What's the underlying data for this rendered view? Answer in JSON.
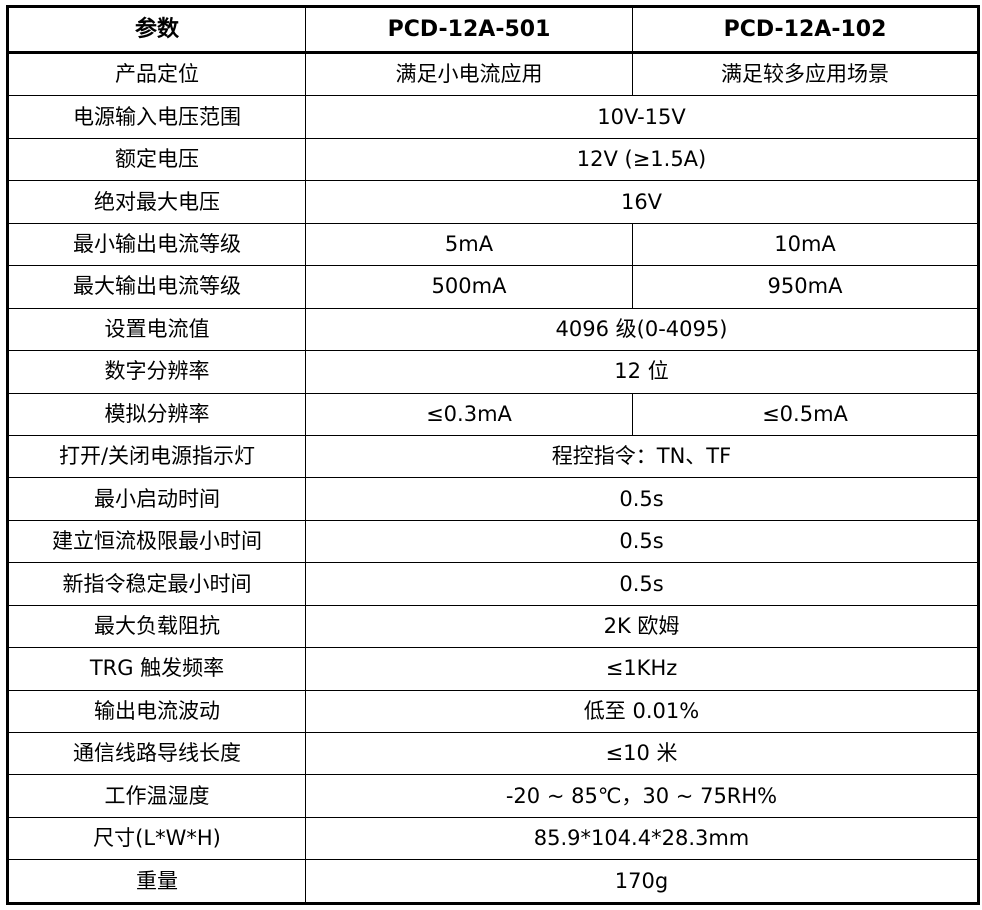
{
  "header": [
    "参数",
    "PCD-12A-501",
    "PCD-12A-102"
  ],
  "rows": [
    [
      "产品定位",
      "满足小电流应用",
      "满足较多应用场景"
    ],
    [
      "电源输入电压范围",
      "10V-15V"
    ],
    [
      "额定电压",
      "12V (≥1.5A)"
    ],
    [
      "绝对最大电压",
      "16V"
    ],
    [
      "最小输出电流等级",
      "5mA",
      "10mA"
    ],
    [
      "最大输出电流等级",
      "500mA",
      "950mA"
    ],
    [
      "设置电流值",
      "4096 级(0-4095)"
    ],
    [
      "数字分辨率",
      "12 位"
    ],
    [
      "模拟分辨率",
      "≤0.3mA",
      "≤0.5mA"
    ],
    [
      "打开/关闭电源指示灯",
      "程控指令：TN、TF"
    ],
    [
      "最小启动时间",
      "0.5s"
    ],
    [
      "建立恒流极限最小时间",
      "0.5s"
    ],
    [
      "新指令稳定最小时间",
      "0.5s"
    ],
    [
      "最大负载阻抗",
      "2K 欧姆"
    ],
    [
      "TRG 触发频率",
      "≤1KHz"
    ],
    [
      "输出电流波动",
      "低至 0.01%"
    ],
    [
      "通信线路导线长度",
      "≤10 米"
    ],
    [
      "工作温湿度",
      "-20 ~ 85℃，30 ~ 75RH%"
    ],
    [
      "尺寸(L*W*H)",
      "85.9*104.4*28.3mm"
    ],
    [
      "重量",
      "170g"
    ]
  ]
}
